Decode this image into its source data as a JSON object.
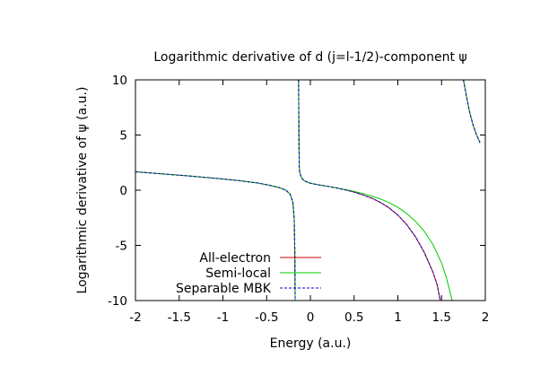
{
  "chart_data": {
    "type": "line",
    "title": "Logarithmic derivative of d (j=l-1/2)-component ψ",
    "xlabel": "Energy (a.u.)",
    "ylabel": "Logarithmic derivative of ψ (a.u.)",
    "xlim": [
      -2,
      2
    ],
    "ylim": [
      -10,
      10
    ],
    "x_ticks": [
      -2,
      -1.5,
      -1,
      -0.5,
      0,
      0.5,
      1,
      1.5,
      2
    ],
    "x_tick_labels": [
      "-2",
      "-1.5",
      "-1",
      "-0.5",
      "0",
      "0.5",
      "1",
      "1.5",
      "2"
    ],
    "y_ticks": [
      -10,
      -5,
      0,
      5,
      10
    ],
    "y_tick_labels": [
      "-10",
      "-5",
      "0",
      "5",
      "10"
    ],
    "grid": false,
    "legend_position": "bottom-left",
    "series": [
      {
        "name": "All-electron",
        "color": "#cc0000",
        "dash": "solid",
        "segments": [
          [
            [
              -2.0,
              1.67
            ],
            [
              -1.8,
              1.55
            ],
            [
              -1.6,
              1.42
            ],
            [
              -1.4,
              1.3
            ],
            [
              -1.2,
              1.16
            ],
            [
              -1.0,
              1.02
            ],
            [
              -0.8,
              0.85
            ],
            [
              -0.6,
              0.65
            ],
            [
              -0.45,
              0.42
            ],
            [
              -0.35,
              0.22
            ],
            [
              -0.28,
              0.0
            ],
            [
              -0.23,
              -0.38
            ],
            [
              -0.2,
              -1.1
            ],
            [
              -0.185,
              -2.6
            ],
            [
              -0.178,
              -5.5
            ],
            [
              -0.174,
              -10.0
            ]
          ],
          [
            [
              -0.135,
              10.0
            ],
            [
              -0.131,
              5.0
            ],
            [
              -0.127,
              2.0
            ],
            [
              -0.12,
              1.55
            ],
            [
              -0.1,
              1.1
            ],
            [
              -0.07,
              0.85
            ],
            [
              0.0,
              0.63
            ],
            [
              0.1,
              0.48
            ],
            [
              0.2,
              0.35
            ],
            [
              0.3,
              0.2
            ],
            [
              0.4,
              0.03
            ],
            [
              0.5,
              -0.17
            ],
            [
              0.6,
              -0.42
            ],
            [
              0.7,
              -0.72
            ],
            [
              0.8,
              -1.1
            ],
            [
              0.9,
              -1.6
            ],
            [
              1.0,
              -2.25
            ],
            [
              1.1,
              -3.1
            ],
            [
              1.2,
              -4.2
            ],
            [
              1.3,
              -5.6
            ],
            [
              1.4,
              -7.4
            ],
            [
              1.45,
              -8.6
            ],
            [
              1.485,
              -10.0
            ]
          ],
          [
            [
              1.75,
              10.0
            ],
            [
              1.78,
              8.7
            ],
            [
              1.82,
              7.1
            ],
            [
              1.86,
              5.9
            ],
            [
              1.9,
              5.0
            ],
            [
              1.94,
              4.3
            ]
          ]
        ]
      },
      {
        "name": "Semi-local",
        "color": "#00cc00",
        "dash": "solid",
        "segments": [
          [
            [
              -2.0,
              1.67
            ],
            [
              -1.8,
              1.55
            ],
            [
              -1.6,
              1.42
            ],
            [
              -1.4,
              1.3
            ],
            [
              -1.2,
              1.16
            ],
            [
              -1.0,
              1.02
            ],
            [
              -0.8,
              0.85
            ],
            [
              -0.6,
              0.65
            ],
            [
              -0.45,
              0.42
            ],
            [
              -0.35,
              0.22
            ],
            [
              -0.28,
              0.0
            ],
            [
              -0.23,
              -0.38
            ],
            [
              -0.2,
              -1.1
            ],
            [
              -0.185,
              -2.6
            ],
            [
              -0.178,
              -5.5
            ],
            [
              -0.174,
              -10.0
            ]
          ],
          [
            [
              -0.135,
              10.0
            ],
            [
              -0.131,
              5.0
            ],
            [
              -0.127,
              2.0
            ],
            [
              -0.12,
              1.55
            ],
            [
              -0.1,
              1.1
            ],
            [
              -0.07,
              0.85
            ],
            [
              0.0,
              0.63
            ],
            [
              0.1,
              0.48
            ],
            [
              0.2,
              0.35
            ],
            [
              0.3,
              0.21
            ],
            [
              0.4,
              0.06
            ],
            [
              0.5,
              -0.11
            ],
            [
              0.6,
              -0.3
            ],
            [
              0.7,
              -0.53
            ],
            [
              0.8,
              -0.8
            ],
            [
              0.9,
              -1.12
            ],
            [
              1.0,
              -1.55
            ],
            [
              1.1,
              -2.1
            ],
            [
              1.2,
              -2.8
            ],
            [
              1.3,
              -3.7
            ],
            [
              1.4,
              -4.9
            ],
            [
              1.5,
              -6.6
            ],
            [
              1.55,
              -7.8
            ],
            [
              1.6,
              -9.3
            ],
            [
              1.62,
              -10.0
            ]
          ],
          [
            [
              1.75,
              10.0
            ],
            [
              1.78,
              8.7
            ],
            [
              1.82,
              7.1
            ],
            [
              1.86,
              5.9
            ],
            [
              1.9,
              5.0
            ],
            [
              1.94,
              4.3
            ]
          ]
        ]
      },
      {
        "name": "Separable MBK",
        "color": "#0000cc",
        "dash": "dashed",
        "segments": [
          [
            [
              -2.0,
              1.67
            ],
            [
              -1.8,
              1.55
            ],
            [
              -1.6,
              1.42
            ],
            [
              -1.4,
              1.3
            ],
            [
              -1.2,
              1.16
            ],
            [
              -1.0,
              1.02
            ],
            [
              -0.8,
              0.85
            ],
            [
              -0.6,
              0.65
            ],
            [
              -0.45,
              0.42
            ],
            [
              -0.35,
              0.22
            ],
            [
              -0.28,
              0.0
            ],
            [
              -0.23,
              -0.38
            ],
            [
              -0.2,
              -1.1
            ],
            [
              -0.185,
              -2.6
            ],
            [
              -0.178,
              -5.5
            ],
            [
              -0.174,
              -10.0
            ]
          ],
          [
            [
              -0.135,
              10.0
            ],
            [
              -0.131,
              5.0
            ],
            [
              -0.127,
              2.0
            ],
            [
              -0.12,
              1.55
            ],
            [
              -0.1,
              1.1
            ],
            [
              -0.07,
              0.85
            ],
            [
              0.0,
              0.63
            ],
            [
              0.1,
              0.48
            ],
            [
              0.2,
              0.35
            ],
            [
              0.3,
              0.2
            ],
            [
              0.4,
              0.03
            ],
            [
              0.5,
              -0.17
            ],
            [
              0.6,
              -0.42
            ],
            [
              0.7,
              -0.72
            ],
            [
              0.8,
              -1.1
            ],
            [
              0.9,
              -1.6
            ],
            [
              1.0,
              -2.25
            ],
            [
              1.1,
              -3.1
            ],
            [
              1.2,
              -4.2
            ],
            [
              1.3,
              -5.6
            ],
            [
              1.4,
              -7.4
            ],
            [
              1.45,
              -8.6
            ],
            [
              1.485,
              -10.0
            ]
          ],
          [
            [
              1.75,
              10.0
            ],
            [
              1.78,
              8.7
            ],
            [
              1.82,
              7.1
            ],
            [
              1.86,
              5.9
            ],
            [
              1.9,
              5.0
            ],
            [
              1.94,
              4.3
            ]
          ]
        ]
      }
    ]
  }
}
